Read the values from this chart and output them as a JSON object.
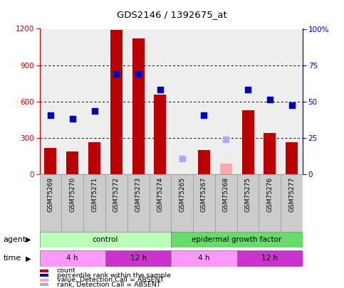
{
  "title": "GDS2146 / 1392675_at",
  "samples": [
    "GSM75269",
    "GSM75270",
    "GSM75271",
    "GSM75272",
    "GSM75273",
    "GSM75274",
    "GSM75265",
    "GSM75267",
    "GSM75268",
    "GSM75275",
    "GSM75276",
    "GSM75277"
  ],
  "bar_values": [
    220,
    190,
    265,
    1190,
    1120,
    660,
    null,
    200,
    null,
    530,
    340,
    265
  ],
  "bar_absent": [
    null,
    null,
    null,
    null,
    null,
    null,
    null,
    null,
    90,
    null,
    null,
    null
  ],
  "bar_color_normal": "#bb0000",
  "bar_color_absent": "#ffaaaa",
  "dot_values": [
    490,
    460,
    525,
    830,
    830,
    700,
    null,
    490,
    null,
    700,
    615,
    570
  ],
  "dot_absent_rank": [
    null,
    null,
    null,
    null,
    null,
    null,
    130,
    null,
    290,
    null,
    null,
    null
  ],
  "dot_color_normal": "#0000bb",
  "dot_color_absent": "#aaaaee",
  "left_ylim": [
    0,
    1200
  ],
  "left_yticks": [
    0,
    300,
    600,
    900,
    1200
  ],
  "right_yticks": [
    0,
    25,
    50,
    75,
    100
  ],
  "right_yticklabels": [
    "0",
    "25",
    "50",
    "75",
    "100%"
  ],
  "agent_groups": [
    {
      "label": "control",
      "start": 0,
      "end": 6,
      "color": "#bbffbb"
    },
    {
      "label": "epidermal growth factor",
      "start": 6,
      "end": 12,
      "color": "#66dd66"
    }
  ],
  "time_groups": [
    {
      "label": "4 h",
      "start": 0,
      "end": 3,
      "color": "#ff99ff"
    },
    {
      "label": "12 h",
      "start": 3,
      "end": 6,
      "color": "#cc33cc"
    },
    {
      "label": "4 h",
      "start": 6,
      "end": 9,
      "color": "#ff99ff"
    },
    {
      "label": "12 h",
      "start": 9,
      "end": 12,
      "color": "#cc33cc"
    }
  ],
  "legend_items": [
    {
      "label": "count",
      "color": "#bb0000"
    },
    {
      "label": "percentile rank within the sample",
      "color": "#0000bb"
    },
    {
      "label": "value, Detection Call = ABSENT",
      "color": "#ffaaaa"
    },
    {
      "label": "rank, Detection Call = ABSENT",
      "color": "#aaaaee"
    }
  ],
  "bg_color": "#ffffff",
  "plot_bg": "#eeeeee",
  "bar_width": 0.55,
  "dot_size": 30
}
